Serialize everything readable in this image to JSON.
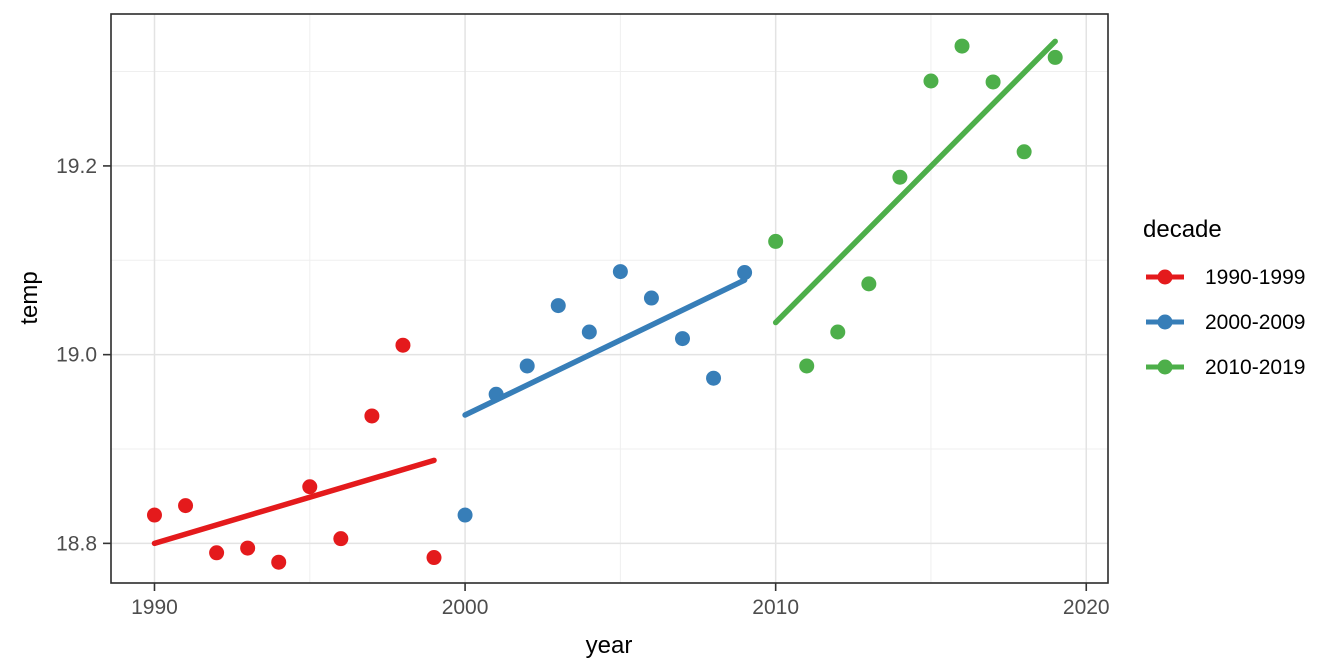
{
  "chart_data": {
    "type": "scatter",
    "title": "",
    "xlabel": "year",
    "ylabel": "temp",
    "xlim": [
      1988.6,
      2020.7
    ],
    "ylim": [
      18.758,
      19.361
    ],
    "grid": true,
    "x_ticks": {
      "major": [
        1990,
        2000,
        2010,
        2020
      ],
      "labels": [
        "1990",
        "2000",
        "2010",
        "2020"
      ],
      "minor": [
        1995,
        2005,
        2015
      ]
    },
    "y_ticks": {
      "major": [
        18.8,
        19.0,
        19.2
      ],
      "labels": [
        "18.8",
        "19.0",
        "19.2"
      ],
      "minor": [
        18.9,
        19.1,
        19.3
      ]
    },
    "legend": {
      "title": "decade",
      "position": "right"
    },
    "series": [
      {
        "name": "1990-1999",
        "color": "#E41A1C",
        "x": [
          1990,
          1991,
          1992,
          1993,
          1994,
          1995,
          1996,
          1997,
          1998,
          1999
        ],
        "y": [
          18.83,
          18.84,
          18.79,
          18.795,
          18.78,
          18.86,
          18.805,
          18.935,
          19.01,
          18.785
        ],
        "trend": {
          "x1": 1990,
          "y1": 18.8,
          "x2": 1999,
          "y2": 18.888
        }
      },
      {
        "name": "2000-2009",
        "color": "#377EB8",
        "x": [
          2000,
          2001,
          2002,
          2003,
          2004,
          2005,
          2006,
          2007,
          2008,
          2009
        ],
        "y": [
          18.83,
          18.958,
          18.988,
          19.052,
          19.024,
          19.088,
          19.06,
          19.017,
          18.975,
          19.087
        ],
        "trend": {
          "x1": 2000,
          "y1": 18.936,
          "x2": 2009,
          "y2": 19.079
        }
      },
      {
        "name": "2010-2019",
        "color": "#4DAF4A",
        "x": [
          2010,
          2011,
          2012,
          2013,
          2014,
          2015,
          2016,
          2017,
          2018,
          2019
        ],
        "y": [
          19.12,
          18.988,
          19.024,
          19.075,
          19.188,
          19.29,
          19.327,
          19.289,
          19.215,
          19.315
        ],
        "trend": {
          "x1": 2010,
          "y1": 19.034,
          "x2": 2019,
          "y2": 19.332
        }
      }
    ],
    "style_colors": {
      "panel_background": "#FFFFFF",
      "panel_border": "#2B2B2B",
      "grid_major": "#E3E3E3",
      "grid_minor": "#EFEFEF",
      "tick_label": "#4D4D4D",
      "tick_mark": "#333333"
    }
  }
}
